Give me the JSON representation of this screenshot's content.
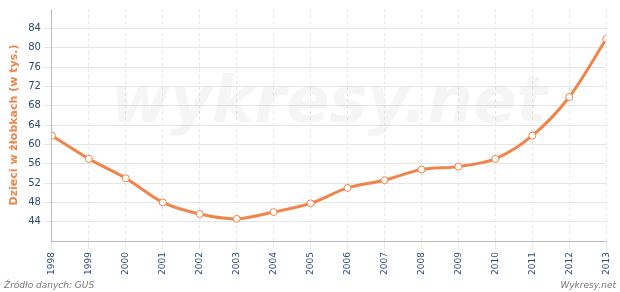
{
  "chart_data": {
    "type": "line",
    "y_label": "Dzieci w żłobkach (w tys.)",
    "source": "Źródło danych: GUS",
    "credit": "Wykresy.net",
    "watermark": "wykresy.net",
    "categories": [
      "1998",
      "1999",
      "2000",
      "2001",
      "2002",
      "2003",
      "2004",
      "2005",
      "2006",
      "2007",
      "2008",
      "2009",
      "2010",
      "2011",
      "2012",
      "2013"
    ],
    "values": [
      61.8,
      57,
      53,
      48,
      45.6,
      44.6,
      46,
      47.8,
      51,
      52.6,
      54.8,
      55.4,
      57,
      61.8,
      69.8,
      81.8
    ],
    "color": "#f0844a",
    "marker": "circle",
    "ylim": [
      40,
      88
    ],
    "yticks": [
      44,
      48,
      52,
      56,
      60,
      64,
      68,
      72,
      76,
      80,
      84
    ],
    "grid": true
  }
}
